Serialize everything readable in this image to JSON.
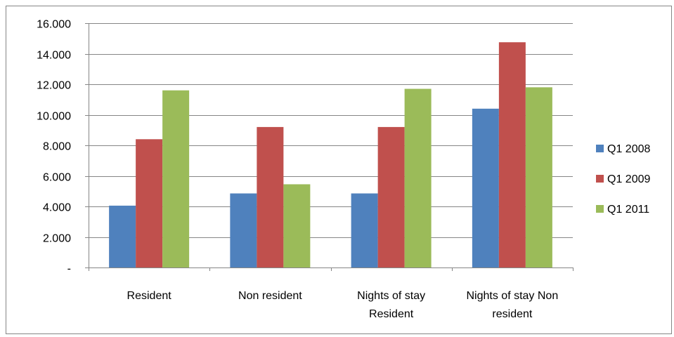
{
  "chart_data": {
    "type": "bar",
    "categories": [
      [
        "Resident"
      ],
      [
        "Non resident"
      ],
      [
        "Nights of stay",
        "Resident"
      ],
      [
        "Nights of stay Non",
        "resident"
      ]
    ],
    "series": [
      {
        "name": "Q1 2008",
        "values": [
          4050,
          4850,
          4850,
          10400
        ],
        "color": "#4F81BD"
      },
      {
        "name": "Q1 2009",
        "values": [
          8400,
          9200,
          9200,
          14750
        ],
        "color": "#C0504D"
      },
      {
        "name": "Q1 2011",
        "values": [
          11600,
          5450,
          11700,
          11800
        ],
        "color": "#9BBB59"
      }
    ],
    "y_ticks": [
      {
        "value": 0,
        "label": "-"
      },
      {
        "value": 2000,
        "label": "2.000"
      },
      {
        "value": 4000,
        "label": "4.000"
      },
      {
        "value": 6000,
        "label": "6.000"
      },
      {
        "value": 8000,
        "label": "8.000"
      },
      {
        "value": 10000,
        "label": "10.000"
      },
      {
        "value": 12000,
        "label": "12.000"
      },
      {
        "value": 14000,
        "label": "14.000"
      },
      {
        "value": 16000,
        "label": "16.000"
      }
    ],
    "ylim": [
      0,
      16000
    ],
    "grid": true,
    "legend": "right"
  }
}
